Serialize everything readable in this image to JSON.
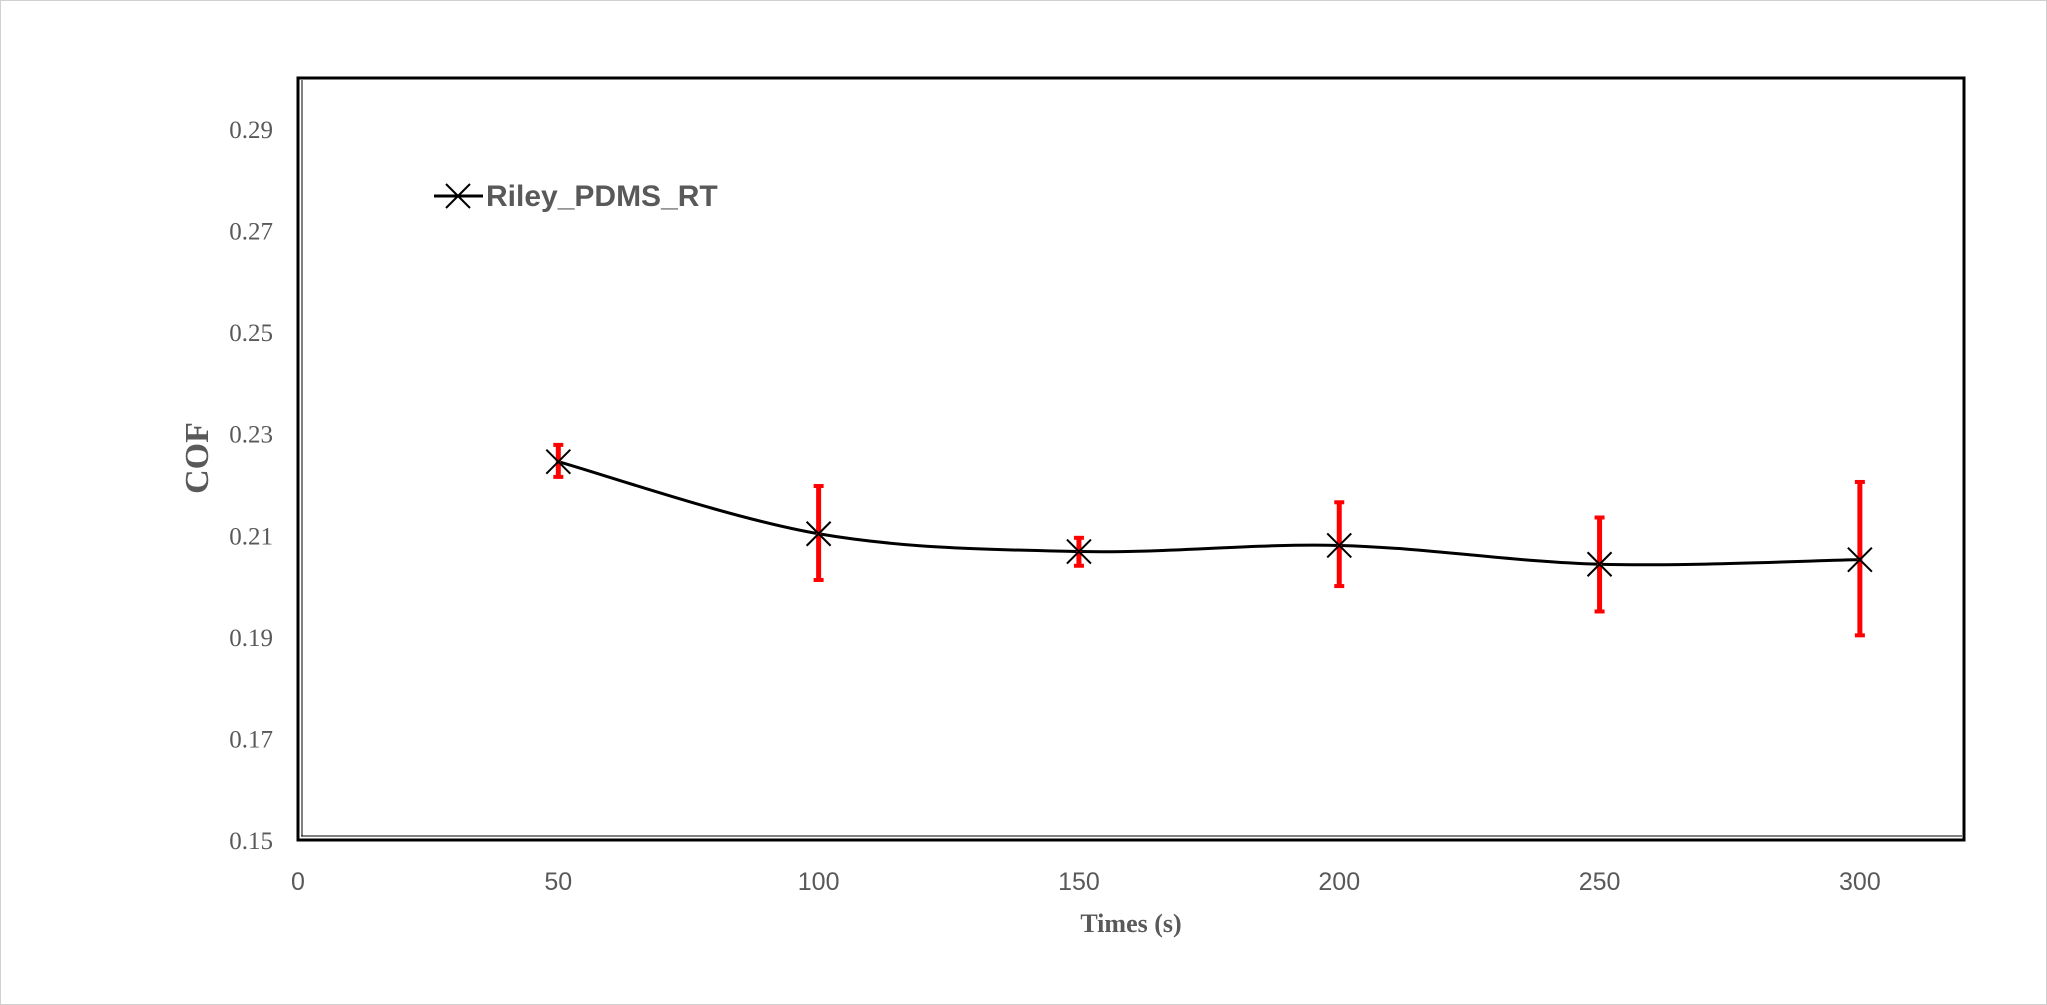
{
  "chart_data": {
    "type": "line",
    "title": "",
    "xlabel": "Times (s)",
    "ylabel": "COF",
    "xlim": [
      0,
      320
    ],
    "ylim": [
      0.15,
      0.3
    ],
    "x_ticks": [
      0,
      50,
      100,
      150,
      200,
      250,
      300
    ],
    "x_tick_labels": [
      "0",
      "50",
      "100",
      "150",
      "200",
      "250",
      "300"
    ],
    "y_ticks": [
      0.15,
      0.17,
      0.19,
      0.21,
      0.23,
      0.25,
      0.27,
      0.29
    ],
    "y_tick_labels": [
      "0.15",
      "0.17",
      "0.19",
      "0.21",
      "0.23",
      "0.25",
      "0.27",
      "0.29"
    ],
    "grid": false,
    "legend_position": "top-left",
    "series": [
      {
        "name": "Riley_PDMS_RT",
        "line_color": "#000000",
        "marker": "x-cross",
        "error_bar_color": "#ff0000",
        "smooth": true,
        "x": [
          50,
          100,
          150,
          200,
          250,
          300
        ],
        "y": [
          0.2245,
          0.2103,
          0.2068,
          0.208,
          0.2043,
          0.2052
        ],
        "error_low": [
          0.2215,
          0.2012,
          0.204,
          0.2,
          0.195,
          0.1903
        ],
        "error_high": [
          0.2278,
          0.2197,
          0.2095,
          0.2165,
          0.2135,
          0.2205
        ]
      }
    ]
  }
}
